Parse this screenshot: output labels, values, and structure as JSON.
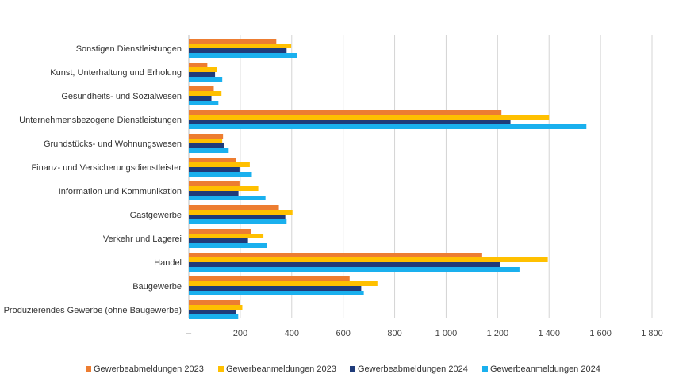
{
  "chart_data": {
    "type": "bar",
    "orientation": "horizontal",
    "title": "",
    "xlabel": "",
    "ylabel": "",
    "xlim": [
      0,
      1800
    ],
    "grid": true,
    "legend_position": "bottom",
    "categories": [
      "Sonstigen Dienstleistungen",
      "Kunst, Unterhaltung und Erholung",
      "Gesundheits- und Sozialwesen",
      "Unternehmensbezogene Dienstleistungen",
      "Grundstücks- und Wohnungswesen",
      "Finanz- und Versicherungsdienstleister",
      "Information und Kommunikation",
      "Gastgewerbe",
      "Verkehr und Lagerei",
      "Handel",
      "Baugewerbe",
      "Produzierendes Gewerbe (ohne Baugewerbe)"
    ],
    "x_ticks": [
      0,
      200,
      400,
      600,
      800,
      1000,
      1200,
      1400,
      1600,
      1800
    ],
    "x_tick_labels": [
      "–",
      "200",
      "400",
      "600",
      "800",
      "1 000",
      "1 200",
      "1 400",
      "1 600",
      "1 800"
    ],
    "series": [
      {
        "name": "Gewerbeabmeldungen 2023",
        "color": "#ED7D31",
        "values": [
          340,
          72,
          97,
          1215,
          133,
          183,
          197,
          350,
          243,
          1140,
          625,
          198
        ]
      },
      {
        "name": "Gewerbeanmeldungen 2023",
        "color": "#FFC000",
        "values": [
          398,
          108,
          127,
          1400,
          130,
          237,
          270,
          403,
          290,
          1395,
          733,
          208
        ]
      },
      {
        "name": "Gewerbeabmeldungen 2024",
        "color": "#1F3B7A",
        "values": [
          380,
          102,
          88,
          1250,
          137,
          197,
          193,
          375,
          230,
          1210,
          670,
          182
        ]
      },
      {
        "name": "Gewerbeanmeldungen 2024",
        "color": "#1AB0EE",
        "values": [
          420,
          130,
          115,
          1545,
          155,
          245,
          298,
          380,
          305,
          1285,
          680,
          192
        ]
      }
    ]
  }
}
